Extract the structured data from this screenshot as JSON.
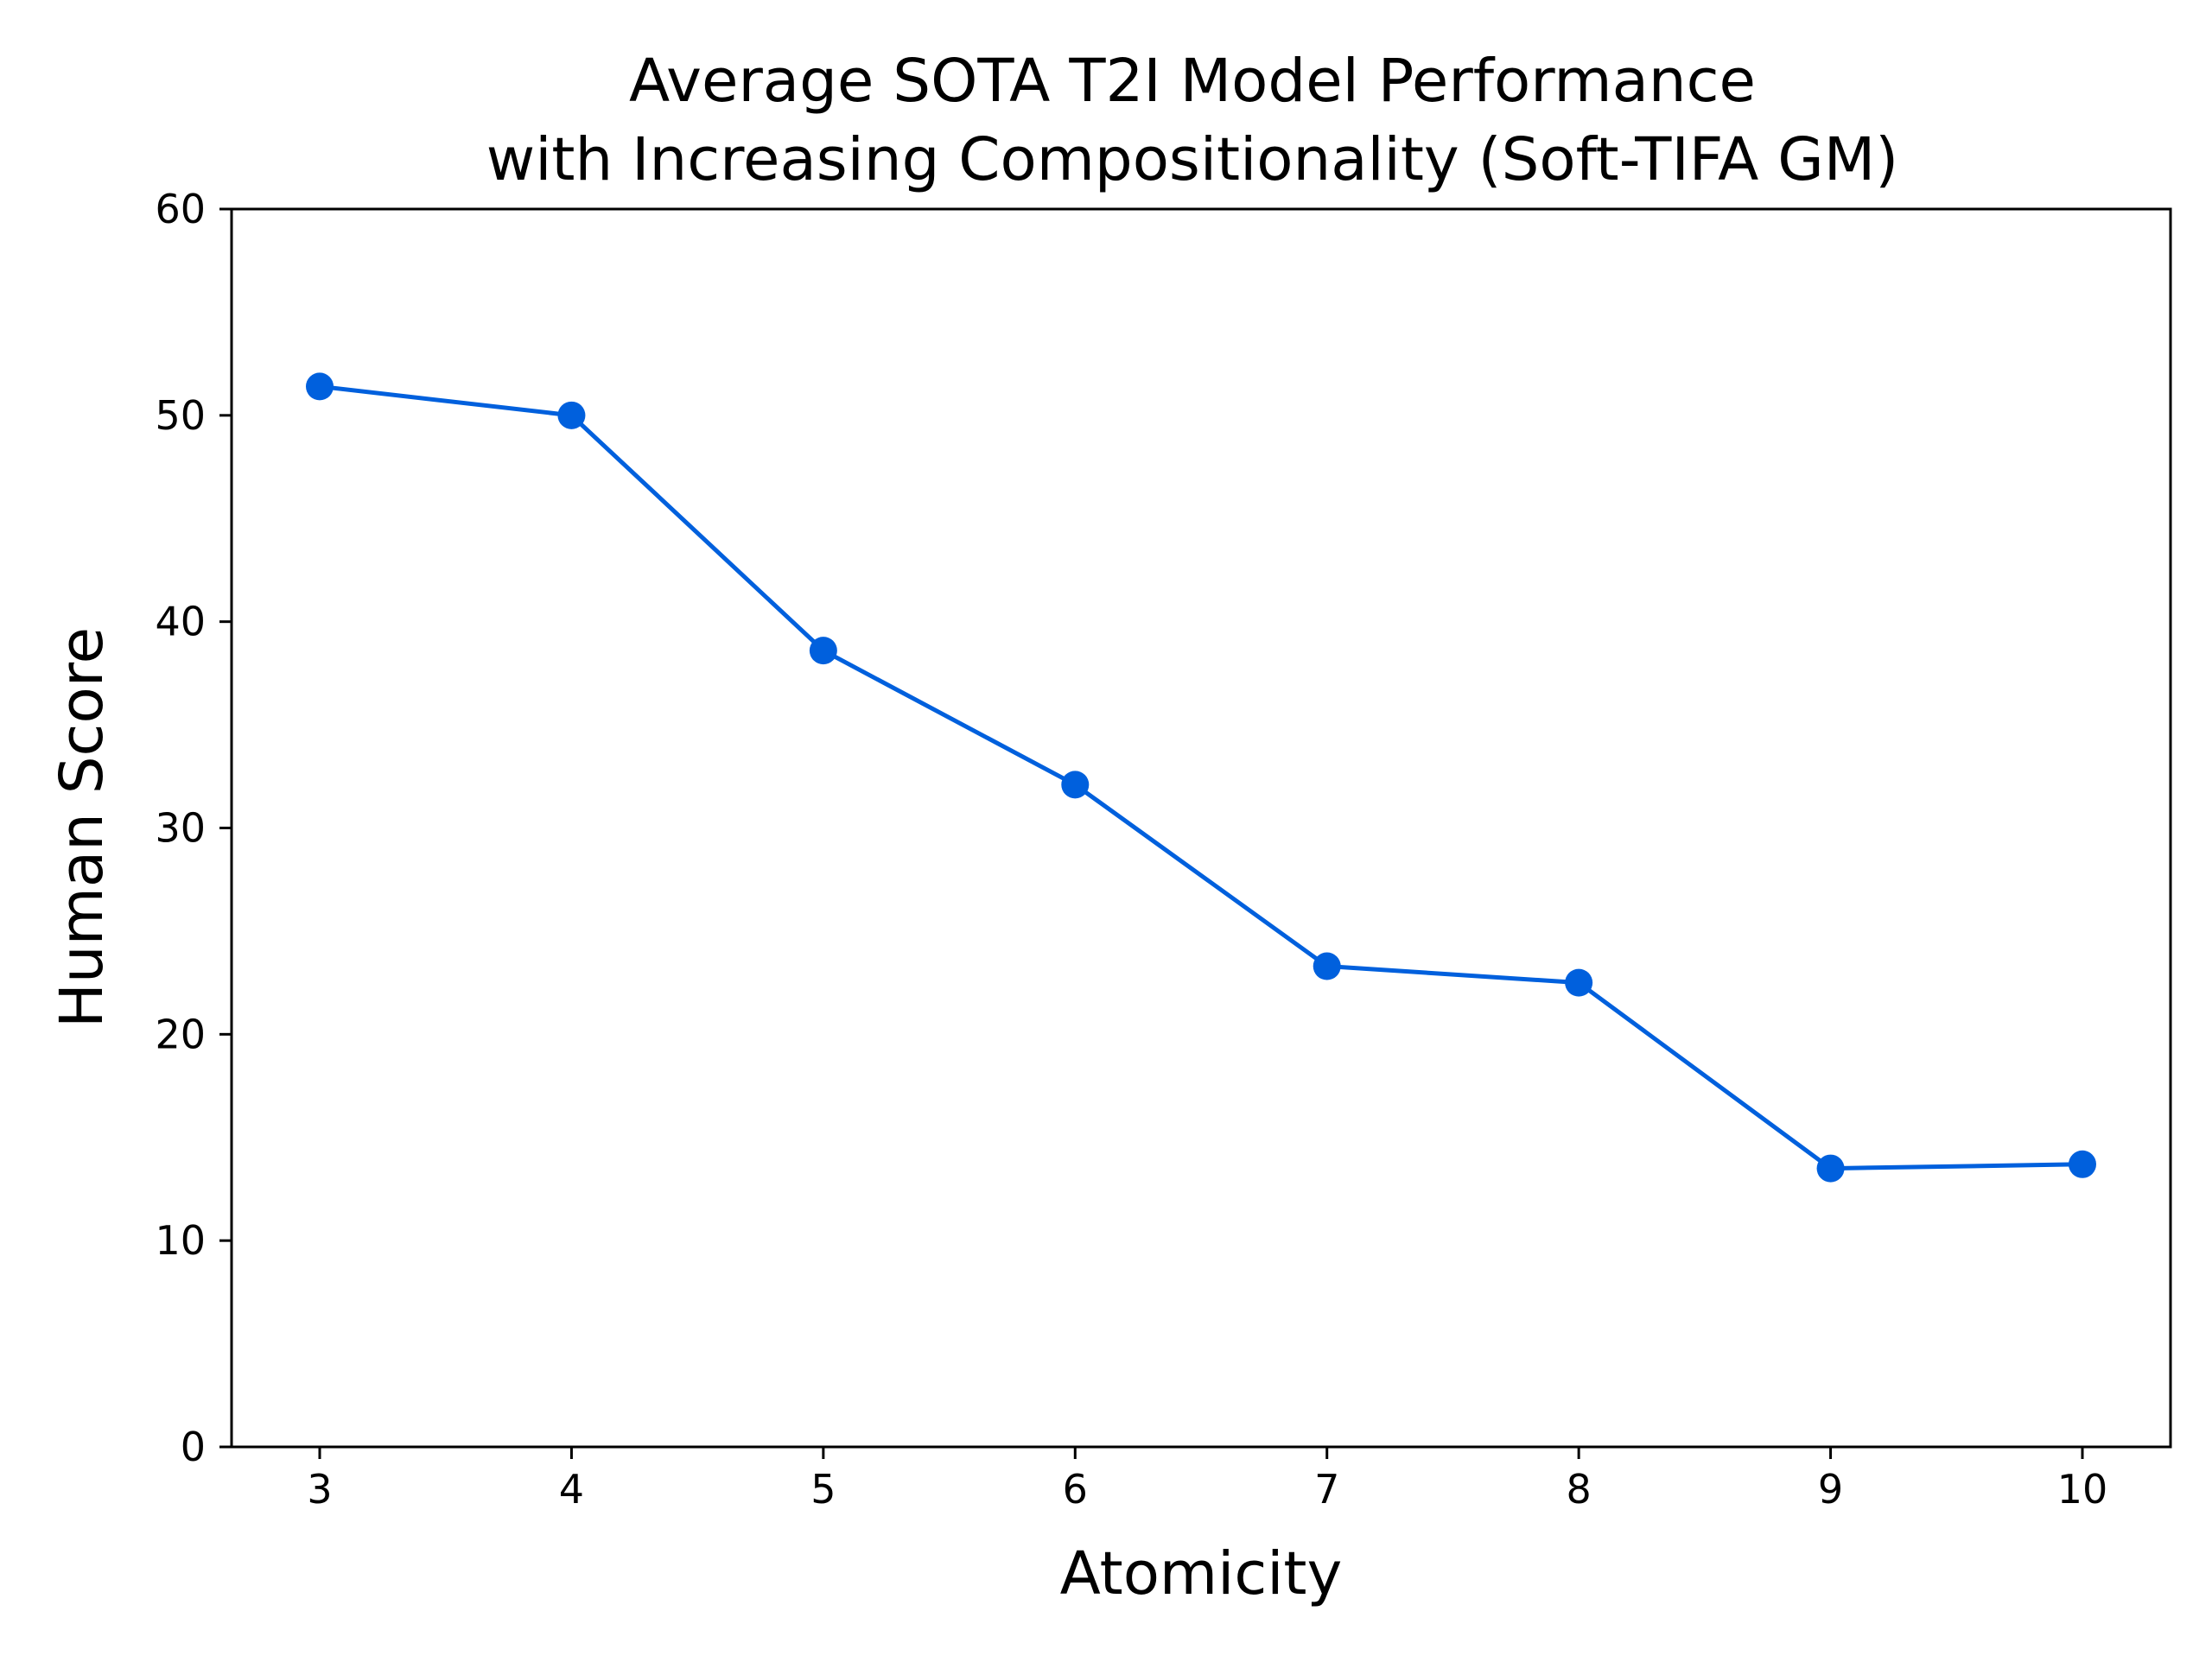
{
  "chart_data": {
    "type": "line",
    "title_lines": [
      "Average SOTA T2I Model Performance",
      "with Increasing Compositionality (Soft-TIFA GM)"
    ],
    "xlabel": "Atomicity",
    "ylabel": "Human Score",
    "x": [
      3,
      4,
      5,
      6,
      7,
      8,
      9,
      10
    ],
    "series": [
      {
        "name": "Soft-TIFA GM",
        "values": [
          51.4,
          50.0,
          38.6,
          32.1,
          23.3,
          22.5,
          13.5,
          13.7
        ],
        "color": "#0060DD",
        "marker": "circle"
      }
    ],
    "xlim": [
      2.65,
      10.35
    ],
    "ylim": [
      0,
      60
    ],
    "xticks": [
      "3",
      "4",
      "5",
      "6",
      "7",
      "8",
      "9",
      "10"
    ],
    "yticks": [
      "0",
      "10",
      "20",
      "30",
      "40",
      "50",
      "60"
    ],
    "grid": false,
    "legend": "none"
  }
}
